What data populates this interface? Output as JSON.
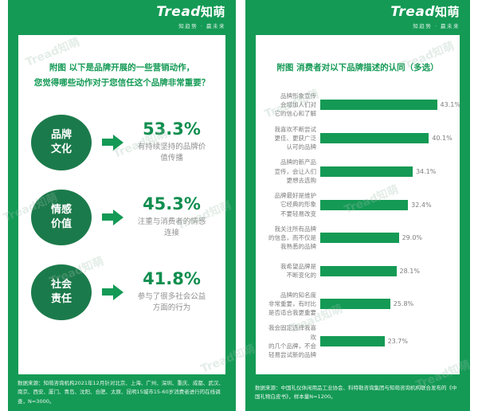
{
  "brand": {
    "logo_en": "Tread",
    "logo_cn": "知萌",
    "tagline": "知趋势 · 赢未来",
    "watermark": "Tread知萌"
  },
  "colors": {
    "green_primary": "#149a55",
    "green_circle": "#1b7a4b",
    "text_gray": "#7d7d7d"
  },
  "left_panel": {
    "title_line1": "附图 以下是品牌开展的一些营销动作，",
    "title_line2": "您觉得哪些动作对于您信任这个品牌非常重要？",
    "source": "数据来源：知萌咨询机构2021年12月针对北京、上海、广州、深圳、重庆、成都、武汉、南京、西安、厦门、青岛、沈阳、合肥、太原、昆明15城市15-60岁消费者进行的在线调查，N=3000。"
  },
  "right_panel": {
    "title": "附图 消费者对以下品牌描述的认同（多选）",
    "source": "数据来源：中国礼仪休闲用品工业协会、科特勒咨询集团与知萌咨询机构联合发布的《中国礼物白皮书》，样本量N=1200。"
  },
  "chart_data": [
    {
      "type": "bar",
      "orientation": "horizontal",
      "title": "附图 消费者对以下品牌描述的认同（多选）",
      "categories": [
        "品牌形象宣传\n会增加人们对\n它的信心和了解",
        "我喜欢不断尝试\n更佳、更获广泛\n认可的品牌",
        "品牌的新产品\n宣传，会让人们\n更想去选购",
        "品牌最好是维护\n它经典的形象\n不要轻易改变",
        "我关注所有品牌\n的信息，而不仅是\n我熟悉的品牌",
        "我希望品牌是\n不断变化的",
        "品牌的知名度\n非常重要，有时比\n是否适合我更重要",
        "我会固定选择我喜欢\n的几个品牌，不会\n轻易尝试新的品牌"
      ],
      "values": [
        43.1,
        40.1,
        34.1,
        32.4,
        29.0,
        28.1,
        25.8,
        23.7
      ],
      "unit": "%",
      "xlim": [
        0,
        50
      ],
      "grid": false,
      "value_labels": true,
      "legend": "none"
    },
    {
      "type": "bar",
      "orientation": "stat-list",
      "title": "附图 以下是品牌开展的一些营销动作，您觉得哪些动作对于您信任这个品牌非常重要？",
      "categories": [
        "品牌\n文化",
        "情感\n价值",
        "社会\n责任"
      ],
      "values": [
        53.3,
        45.3,
        41.8
      ],
      "descriptions": [
        "有持续坚持的品牌价\n值传播",
        "注重与消费者的情感\n连接",
        "参与了很多社会公益\n方面的行为"
      ],
      "unit": "%"
    }
  ]
}
